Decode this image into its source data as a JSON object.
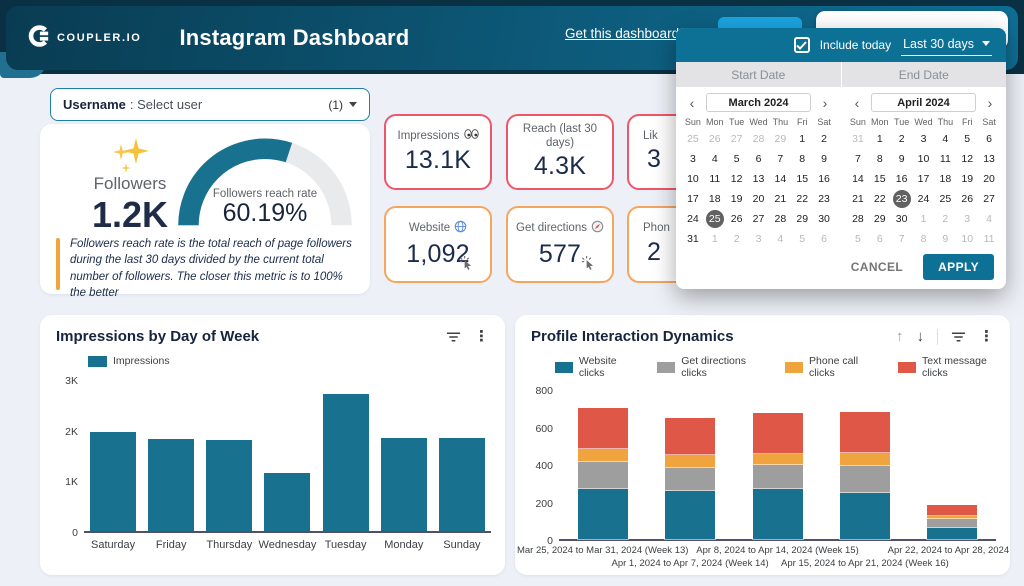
{
  "header": {
    "logo_text": "COUPLER.IO",
    "title": "Instagram Dashboard",
    "link_label": "Get this dashboard fo"
  },
  "username_bar": {
    "label": "Username",
    "separator": ":",
    "value": "Select user",
    "count": "(1)"
  },
  "followers": {
    "label": "Followers",
    "value": "1.2K",
    "note": "Followers reach rate is the total reach of page followers during the last 30 days divided by the current total number of followers. The closer this metric is to 100% the better"
  },
  "metric_cards": [
    {
      "label": "Impressions",
      "icon": "eyes-icon",
      "value": "13.1K"
    },
    {
      "label": "Reach (last 30 days)",
      "icon": null,
      "value": "4.3K"
    },
    {
      "label": "Lik",
      "icon": null,
      "value": "3"
    },
    {
      "label": "Website",
      "icon": "globe-icon",
      "value": "1,092",
      "click_icon": true
    },
    {
      "label": "Get directions",
      "icon": "compass-icon",
      "value": "577",
      "click_icon": true
    },
    {
      "label": "Phon",
      "icon": null,
      "value": "2"
    }
  ],
  "date_picker": {
    "include_today_label": "Include today",
    "include_today_checked": true,
    "range_label": "Last 30 days",
    "start_label": "Start Date",
    "end_label": "End Date",
    "weekdays": [
      "Sun",
      "Mon",
      "Tue",
      "Wed",
      "Thu",
      "Fri",
      "Sat"
    ],
    "calendars": [
      {
        "month": "March 2024",
        "days": [
          "25o",
          "26o",
          "27o",
          "28o",
          "29o",
          "1",
          "2",
          "3",
          "4",
          "5",
          "6",
          "7",
          "8",
          "9",
          "10",
          "11",
          "12",
          "13",
          "14",
          "15",
          "16",
          "17",
          "18",
          "19",
          "20",
          "21",
          "22",
          "23",
          "24",
          "25s",
          "26",
          "27",
          "28",
          "29",
          "30",
          "31",
          "1o",
          "2o",
          "3o",
          "4o",
          "5o",
          "6o"
        ]
      },
      {
        "month": "April 2024",
        "days": [
          "31o",
          "1",
          "2",
          "3",
          "4",
          "5",
          "6",
          "7",
          "8",
          "9",
          "10",
          "11",
          "12",
          "13",
          "14",
          "15",
          "16",
          "17",
          "18",
          "19",
          "20",
          "21",
          "22",
          "23s",
          "24",
          "25",
          "26",
          "27",
          "28",
          "29",
          "30",
          "1o",
          "2o",
          "3o",
          "4o",
          "5o",
          "6o",
          "7o",
          "8o",
          "9o",
          "10o",
          "11o"
        ]
      }
    ],
    "cancel_label": "CANCEL",
    "apply_label": "APPLY",
    "accent_color": "#0d7095"
  },
  "chart_data": [
    {
      "type": "bar",
      "title": "Impressions by Day of Week",
      "series_name": "Impressions",
      "color": "#17718f",
      "categories": [
        "Saturday",
        "Friday",
        "Thursday",
        "Wednesday",
        "Tuesday",
        "Monday",
        "Sunday"
      ],
      "values": [
        1950,
        1820,
        1800,
        1150,
        2700,
        1840,
        1840
      ],
      "ylim": [
        0,
        3000
      ],
      "yticks": [
        {
          "label": "0",
          "v": 0
        },
        {
          "label": "1K",
          "v": 1000
        },
        {
          "label": "2K",
          "v": 2000
        },
        {
          "label": "3K",
          "v": 3000
        }
      ],
      "grid": false,
      "legend_position": "top-left"
    },
    {
      "type": "stacked-bar",
      "title": "Profile Interaction Dynamics",
      "categories": [
        "Mar 25, 2024 to Mar 31, 2024 (Week 13)",
        "Apr 1, 2024 to Apr 7, 2024 (Week 14)",
        "Apr 8, 2024 to Apr 14, 2024 (Week 15)",
        "Apr 15, 2024 to Apr 21, 2024 (Week 16)",
        "Apr 22, 2024 to Apr 28, 2024..."
      ],
      "series": [
        {
          "name": "Website clicks",
          "color": "#17718f",
          "values": [
            265,
            255,
            265,
            245,
            60
          ]
        },
        {
          "name": "Get directions clicks",
          "color": "#9e9e9e",
          "values": [
            145,
            125,
            130,
            145,
            45
          ]
        },
        {
          "name": "Phone call clicks",
          "color": "#efa43d",
          "values": [
            70,
            70,
            60,
            70,
            20
          ]
        },
        {
          "name": "Text message clicks",
          "color": "#df5847",
          "values": [
            220,
            195,
            215,
            215,
            55
          ]
        }
      ],
      "ylim": [
        0,
        800
      ],
      "yticks": [
        {
          "label": "0",
          "v": 0
        },
        {
          "label": "200",
          "v": 200
        },
        {
          "label": "400",
          "v": 400
        },
        {
          "label": "600",
          "v": 600
        },
        {
          "label": "800",
          "v": 800
        }
      ],
      "grid": false,
      "legend_position": "top"
    },
    {
      "type": "gauge",
      "label": "Followers reach rate",
      "display": "60.19%",
      "value_percent": 60.19,
      "color": "#17718f",
      "track_color": "#e9eaec"
    }
  ]
}
